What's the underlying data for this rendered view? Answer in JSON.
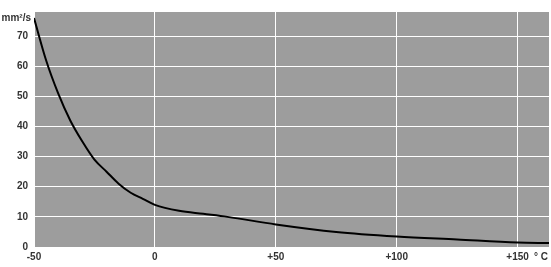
{
  "chart_data": {
    "type": "line",
    "y_label": "mm²/s",
    "x_label": "° C",
    "x": [
      -50,
      -45,
      -40,
      -35,
      -30,
      -25,
      -20,
      -15,
      -10,
      -5,
      0,
      10,
      20,
      30,
      50,
      75,
      100,
      125,
      150,
      163
    ],
    "values": [
      76,
      62,
      51,
      42,
      35,
      29,
      25,
      21,
      18,
      16,
      14,
      12,
      11,
      10,
      7.5,
      5,
      3.5,
      2.5,
      1.5,
      1.3
    ],
    "color": "#000000",
    "xlim": [
      -50,
      163
    ],
    "xticks": [
      {
        "value": -50,
        "label": "-50"
      },
      {
        "value": 0,
        "label": "0"
      },
      {
        "value": 50,
        "label": "+50"
      },
      {
        "value": 100,
        "label": "+100"
      },
      {
        "value": 150,
        "label": "+150"
      }
    ],
    "ylim": [
      0,
      78
    ],
    "yticks": [
      0,
      10,
      20,
      30,
      40,
      50,
      60,
      70
    ],
    "grid": true
  }
}
